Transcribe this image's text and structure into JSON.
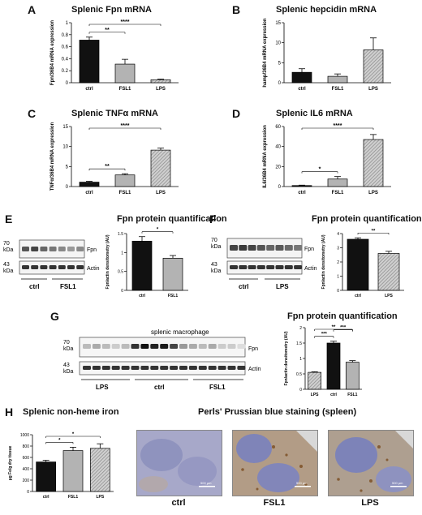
{
  "panels": {
    "A": {
      "letter": "A",
      "title": "Splenic Fpn mRNA"
    },
    "B": {
      "letter": "B",
      "title": "Splenic hepcidin mRNA"
    },
    "C": {
      "letter": "C",
      "title": "Splenic TNFα mRNA"
    },
    "D": {
      "letter": "D",
      "title": "Splenic IL6 mRNA"
    },
    "E": {
      "letter": "E",
      "title": "Fpn protein quantification",
      "blot_mw": [
        "70",
        "kDa",
        "43",
        "kDa"
      ],
      "blot_bands": [
        "Fpn",
        "Actin"
      ],
      "blot_groups": [
        "ctrl",
        "FSL1"
      ]
    },
    "F": {
      "letter": "F",
      "title": "Fpn protein quantification",
      "blot_mw": [
        "70",
        "kDa",
        "43",
        "kDa"
      ],
      "blot_bands": [
        "Fpn",
        "Actin"
      ],
      "blot_groups": [
        "ctrl",
        "LPS"
      ]
    },
    "G": {
      "letter": "G",
      "title": "Fpn protein quantification",
      "blot_header": "splenic macrophage",
      "blot_mw": [
        "70",
        "kDa",
        "43",
        "kDa"
      ],
      "blot_bands": [
        "Fpn",
        "Actin"
      ],
      "blot_groups": [
        "LPS",
        "ctrl",
        "FSL1"
      ]
    },
    "H": {
      "letter": "H",
      "title": "Splenic non-heme iron"
    },
    "perls": {
      "title": "Perls' Prussian blue staining (spleen)",
      "captions": [
        "ctrl",
        "FSL1",
        "LPS"
      ],
      "scale_labels": [
        "500 µm",
        "500 µm",
        "500 µm"
      ]
    }
  },
  "colors": {
    "black": "#111111",
    "grey": "#b3b3b3",
    "hatch": "#888888",
    "purple": "#6f73a8",
    "brown": "#8a5a2b"
  },
  "chart_data": [
    {
      "id": "A",
      "type": "bar",
      "categories": [
        "ctrl",
        "FSL1",
        "LPS"
      ],
      "values": [
        0.71,
        0.31,
        0.05
      ],
      "errors": [
        0.05,
        0.08,
        0.01
      ],
      "ylim": [
        0,
        1.0
      ],
      "yticks": [
        0.0,
        0.2,
        0.4,
        0.6,
        0.8,
        1.0
      ],
      "ylabel": "Fpn/36B4 mRNA expression",
      "fills": [
        "black",
        "grey",
        "hatch"
      ],
      "annotations": [
        {
          "from": 0,
          "to": 1,
          "text": "**"
        },
        {
          "from": 0,
          "to": 2,
          "text": "****"
        }
      ]
    },
    {
      "id": "B",
      "type": "bar",
      "categories": [
        "ctrl",
        "FSL1",
        "LPS"
      ],
      "values": [
        2.6,
        1.6,
        8.2
      ],
      "errors": [
        0.9,
        0.6,
        3.0
      ],
      "ylim": [
        0,
        15
      ],
      "yticks": [
        0,
        5,
        10,
        15
      ],
      "ylabel": "hamp/36B4 mRNA expression",
      "fills": [
        "black",
        "grey",
        "hatch"
      ],
      "annotations": []
    },
    {
      "id": "C",
      "type": "bar",
      "categories": [
        "ctrl",
        "FSL1",
        "LPS"
      ],
      "values": [
        1.1,
        2.9,
        9.1
      ],
      "errors": [
        0.2,
        0.3,
        0.5
      ],
      "ylim": [
        0,
        15
      ],
      "yticks": [
        0,
        5,
        10,
        15
      ],
      "ylabel": "TNFα/36B4 mRNA expression",
      "fills": [
        "black",
        "grey",
        "hatch"
      ],
      "annotations": [
        {
          "from": 0,
          "to": 1,
          "text": "**"
        },
        {
          "from": 0,
          "to": 2,
          "text": "****"
        }
      ]
    },
    {
      "id": "D",
      "type": "bar",
      "categories": [
        "ctrl",
        "FSL1",
        "LPS"
      ],
      "values": [
        1.0,
        7.5,
        47.0
      ],
      "errors": [
        0.4,
        2.5,
        5.0
      ],
      "ylim": [
        0,
        60
      ],
      "yticks": [
        0,
        20,
        40,
        60
      ],
      "ylabel": "IL6/36B4 mRNA expression",
      "fills": [
        "black",
        "grey",
        "hatch"
      ],
      "annotations": [
        {
          "from": 0,
          "to": 1,
          "text": "*"
        },
        {
          "from": 0,
          "to": 2,
          "text": "****"
        }
      ]
    },
    {
      "id": "E",
      "type": "bar",
      "categories": [
        "ctrl",
        "FSL1"
      ],
      "values": [
        1.3,
        0.85
      ],
      "errors": [
        0.12,
        0.07
      ],
      "ylim": [
        0,
        1.5
      ],
      "yticks": [
        0.0,
        0.5,
        1.0,
        1.5
      ],
      "ylabel": "Fpn/actin densitometry (AU)",
      "fills": [
        "black",
        "grey"
      ],
      "annotations": [
        {
          "from": 0,
          "to": 1,
          "text": "*"
        }
      ]
    },
    {
      "id": "F",
      "type": "bar",
      "categories": [
        "ctrl",
        "LPS"
      ],
      "values": [
        3.6,
        2.6
      ],
      "errors": [
        0.1,
        0.15
      ],
      "ylim": [
        0,
        4
      ],
      "yticks": [
        0,
        1,
        2,
        3,
        4
      ],
      "ylabel": "Fpn/actin densitometry (AU)",
      "fills": [
        "black",
        "hatch"
      ],
      "annotations": [
        {
          "from": 0,
          "to": 1,
          "text": "**"
        }
      ]
    },
    {
      "id": "G",
      "type": "bar",
      "categories": [
        "LPS",
        "ctrl",
        "FSL1"
      ],
      "values": [
        0.55,
        1.5,
        0.88
      ],
      "errors": [
        0.02,
        0.06,
        0.05
      ],
      "ylim": [
        0,
        2.0
      ],
      "yticks": [
        0.0,
        0.5,
        1.0,
        1.5,
        2.0
      ],
      "ylabel": "Fpn/actin densitometry (AU)",
      "fills": [
        "hatch",
        "black",
        "grey"
      ],
      "annotations": [
        {
          "from": 0,
          "to": 1,
          "text": "***"
        },
        {
          "from": 1,
          "to": 2,
          "text": "***"
        },
        {
          "from": 0,
          "to": 2,
          "text": "**"
        }
      ]
    },
    {
      "id": "H",
      "type": "bar",
      "categories": [
        "ctrl",
        "FSL1",
        "LPS"
      ],
      "values": [
        520,
        720,
        760
      ],
      "errors": [
        30,
        60,
        80
      ],
      "ylim": [
        0,
        1000
      ],
      "yticks": [
        0,
        200,
        400,
        600,
        800,
        1000
      ],
      "ylabel": "µg Fe/g dry tissue",
      "fills": [
        "black",
        "grey",
        "hatch"
      ],
      "annotations": [
        {
          "from": 0,
          "to": 1,
          "text": "*"
        },
        {
          "from": 0,
          "to": 2,
          "text": "*"
        }
      ]
    }
  ]
}
